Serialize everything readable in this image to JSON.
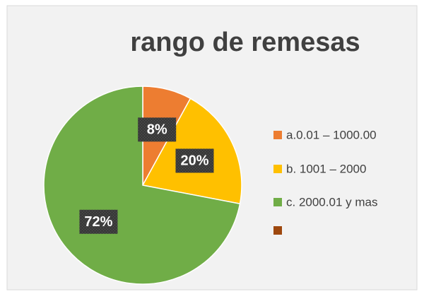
{
  "chart_data": {
    "type": "pie",
    "title": "rango de remesas",
    "categories": [
      "a.0.01 – 1000.00",
      "b. 1001 – 2000",
      "c. 2000.01 y mas",
      null
    ],
    "values": [
      8,
      20,
      72,
      0
    ],
    "value_labels": [
      "8%",
      "20%",
      "72%",
      null
    ],
    "colors": [
      "#ed7d31",
      "#ffc000",
      "#70ad47",
      "#9e480e"
    ],
    "legend": "right"
  }
}
